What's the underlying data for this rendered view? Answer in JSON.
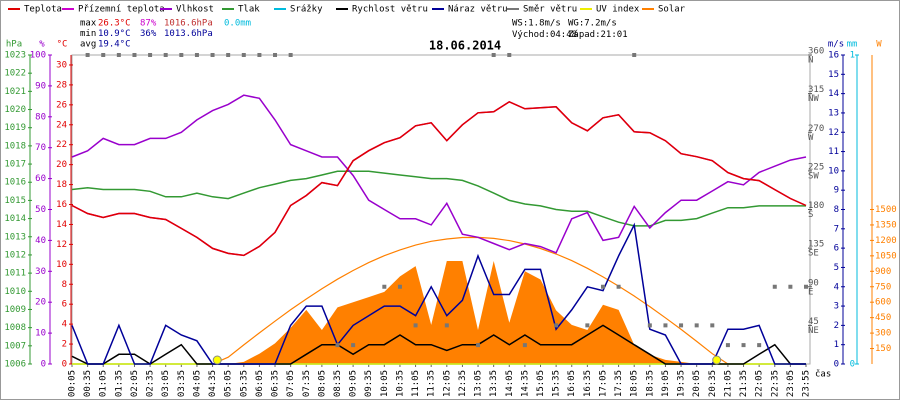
{
  "header": {
    "stats": [
      {
        "label": "max",
        "items": [
          {
            "text": "26.3°C",
            "color": "#e00000"
          },
          {
            "text": "87%",
            "color": "#cc00cc"
          },
          {
            "text": "1016.6hPa",
            "color": "#c03030"
          },
          {
            "text": "0.0mm",
            "color": "#00bbdd"
          }
        ]
      },
      {
        "label": "min",
        "items": [
          {
            "text": "10.9°C",
            "color": "#000099"
          },
          {
            "text": "36%",
            "color": "#000099"
          },
          {
            "text": "1013.6hPa",
            "color": "#000099"
          }
        ]
      },
      {
        "label": "avg",
        "items": [
          {
            "text": "19.4°C",
            "color": "#000099"
          }
        ]
      }
    ],
    "wind_speed": "WS:1.8m/s",
    "wind_gust": "WG:7.2m/s",
    "sunrise_label": "Východ:",
    "sunrise": "04:48",
    "sunset_label": "Západ:",
    "sunset": "21:01"
  },
  "chart_data": {
    "type": "line",
    "title": "18.06.2014",
    "x_label": "čas",
    "categories": [
      "00:05",
      "00:35",
      "01:05",
      "01:35",
      "02:05",
      "02:35",
      "03:05",
      "03:35",
      "04:05",
      "04:35",
      "05:05",
      "05:35",
      "06:05",
      "06:35",
      "07:05",
      "07:35",
      "08:05",
      "08:35",
      "09:05",
      "09:35",
      "10:05",
      "10:35",
      "11:05",
      "11:35",
      "12:05",
      "12:35",
      "13:05",
      "13:35",
      "14:05",
      "14:35",
      "15:05",
      "15:35",
      "16:05",
      "16:35",
      "17:05",
      "17:35",
      "18:05",
      "18:35",
      "19:05",
      "19:35",
      "20:05",
      "20:35",
      "21:05",
      "21:35",
      "22:05",
      "22:35",
      "23:05",
      "23:55"
    ],
    "axes": {
      "press": {
        "unit": "hPa",
        "color": "#339933",
        "lim": [
          1006,
          1023
        ],
        "ticks": [
          1006,
          1007,
          1008,
          1009,
          1010,
          1011,
          1012,
          1013,
          1014,
          1015,
          1016,
          1017,
          1018,
          1019,
          1020,
          1021,
          1022,
          1023
        ]
      },
      "hum": {
        "unit": "%",
        "color": "#9900cc",
        "lim": [
          0,
          100
        ],
        "ticks": [
          0,
          10,
          20,
          30,
          40,
          50,
          60,
          70,
          80,
          90,
          100
        ]
      },
      "temp": {
        "unit": "°C",
        "color": "#e00000",
        "lim": [
          0,
          31
        ],
        "ticks": [
          0,
          2,
          4,
          6,
          8,
          10,
          12,
          14,
          16,
          18,
          20,
          22,
          24,
          26,
          28,
          30
        ]
      },
      "dir": {
        "color": "#555555",
        "lim": [
          0,
          360
        ],
        "ticks": [
          45,
          90,
          135,
          180,
          225,
          270,
          315,
          360
        ],
        "tick_names": [
          "NE",
          "E",
          "SE",
          "S",
          "SW",
          "W",
          "NW",
          "N"
        ]
      },
      "wind": {
        "unit": "m/s",
        "color": "#000099",
        "lim": [
          0,
          16
        ],
        "ticks": [
          0,
          1,
          2,
          3,
          4,
          5,
          6,
          7,
          8,
          9,
          10,
          11,
          12,
          13,
          14,
          15,
          16
        ]
      },
      "rain": {
        "unit": "mm",
        "color": "#00bbdd",
        "lim": [
          0,
          1
        ],
        "ticks": [
          0,
          1
        ]
      },
      "solar": {
        "unit": "W",
        "color": "#ff8000",
        "lim": [
          0,
          3000
        ],
        "ticks": [
          150,
          300,
          450,
          600,
          750,
          900,
          1050,
          1200,
          1350,
          1500
        ]
      }
    },
    "series": [
      {
        "name": "Solar",
        "color": "#ff8000",
        "axis": "solar",
        "kind": "area",
        "values": [
          0,
          0,
          0,
          0,
          0,
          0,
          0,
          0,
          0,
          0,
          0,
          20,
          100,
          200,
          350,
          525,
          330,
          550,
          600,
          650,
          700,
          850,
          950,
          380,
          1000,
          1000,
          330,
          1000,
          400,
          900,
          820,
          520,
          380,
          330,
          575,
          525,
          185,
          90,
          40,
          20,
          0,
          0,
          0,
          0,
          0,
          0,
          0,
          0
        ]
      },
      {
        "name": "Teplota",
        "color": "#e00000",
        "axis": "temp",
        "kind": "line",
        "values": [
          15.9,
          15.1,
          14.7,
          15.1,
          15.1,
          14.7,
          14.5,
          13.6,
          12.7,
          11.6,
          11.1,
          10.9,
          11.8,
          13.2,
          15.9,
          16.9,
          18.2,
          17.9,
          20.4,
          21.4,
          22.2,
          22.7,
          23.9,
          24.2,
          22.4,
          24.0,
          25.2,
          25.3,
          26.3,
          25.6,
          25.7,
          25.8,
          24.2,
          23.4,
          24.7,
          25.0,
          23.3,
          23.2,
          22.4,
          21.1,
          20.8,
          20.4,
          19.2,
          18.6,
          18.4,
          17.5,
          16.6,
          15.9
        ]
      },
      {
        "name": "Přízemní teplota",
        "color": "#cc00cc",
        "axis": "temp",
        "kind": "line",
        "values": [
          15.9,
          15.1,
          14.7,
          15.1,
          15.1,
          14.7,
          14.5,
          13.6,
          12.7,
          11.6,
          11.1,
          10.9,
          11.8,
          13.2,
          15.9,
          16.9,
          18.2,
          17.9,
          20.4,
          21.4,
          22.2,
          22.7,
          23.9,
          24.2,
          22.4,
          24.0,
          25.2,
          25.3,
          26.3,
          25.6,
          25.7,
          25.8,
          24.2,
          23.4,
          24.7,
          25.0,
          23.3,
          23.2,
          22.4,
          21.1,
          20.8,
          20.4,
          19.2,
          18.6,
          18.4,
          17.5,
          16.6,
          15.9
        ]
      },
      {
        "name": "Vlhkost",
        "color": "#9900cc",
        "axis": "hum",
        "kind": "line",
        "values": [
          67,
          69,
          73,
          71,
          71,
          73,
          73,
          75,
          79,
          82,
          84,
          87,
          86,
          79,
          71,
          69,
          67,
          67,
          61,
          53,
          50,
          47,
          47,
          45,
          52,
          42,
          41,
          39,
          37,
          39,
          38,
          36,
          47,
          49,
          40,
          41,
          51,
          44,
          49,
          53,
          53,
          56,
          59,
          58,
          62,
          64,
          66,
          67
        ]
      },
      {
        "name": "Tlak",
        "color": "#339933",
        "axis": "press",
        "kind": "line",
        "values": [
          1015.6,
          1015.7,
          1015.6,
          1015.6,
          1015.6,
          1015.5,
          1015.2,
          1015.2,
          1015.4,
          1015.2,
          1015.1,
          1015.4,
          1015.7,
          1015.9,
          1016.1,
          1016.2,
          1016.4,
          1016.6,
          1016.6,
          1016.6,
          1016.5,
          1016.4,
          1016.3,
          1016.2,
          1016.2,
          1016.1,
          1015.8,
          1015.4,
          1015.0,
          1014.8,
          1014.7,
          1014.5,
          1014.4,
          1014.4,
          1014.1,
          1013.8,
          1013.6,
          1013.6,
          1013.9,
          1013.9,
          1014.0,
          1014.3,
          1014.6,
          1014.6,
          1014.7,
          1014.7,
          1014.7,
          1014.7
        ]
      },
      {
        "name": "Srážky",
        "color": "#00bbdd",
        "axis": "rain",
        "kind": "line",
        "values": [
          0,
          0,
          0,
          0,
          0,
          0,
          0,
          0,
          0,
          0,
          0,
          0,
          0,
          0,
          0,
          0,
          0,
          0,
          0,
          0,
          0,
          0,
          0,
          0,
          0,
          0,
          0,
          0,
          0,
          0,
          0,
          0,
          0,
          0,
          0,
          0,
          0,
          0,
          0,
          0,
          0,
          0,
          0,
          0,
          0,
          0,
          0,
          0
        ]
      },
      {
        "name": "Rychlost větru",
        "color": "#000000",
        "axis": "wind",
        "kind": "line",
        "values": [
          0.4,
          0,
          0,
          0.5,
          0.5,
          0,
          0.5,
          1,
          0,
          0,
          0,
          0,
          0,
          0,
          0,
          0.5,
          1,
          1,
          0.5,
          1,
          1,
          1.5,
          1,
          1,
          0.7,
          1,
          1,
          1.5,
          1,
          1.5,
          1,
          1,
          1,
          1.5,
          2,
          1.5,
          1,
          0.5,
          0,
          0,
          0,
          0,
          0,
          0,
          0.5,
          1,
          0,
          0
        ]
      },
      {
        "name": "Náraz větru",
        "color": "#000099",
        "axis": "wind",
        "kind": "line",
        "values": [
          2,
          0,
          0,
          2,
          0,
          0,
          2,
          1.5,
          1.2,
          0,
          0,
          0,
          0,
          0,
          2,
          3,
          3,
          1,
          2,
          2.5,
          3,
          3,
          2.5,
          4,
          2.5,
          3.3,
          5.6,
          3.6,
          3.6,
          4.9,
          4.9,
          1.8,
          2.8,
          4,
          3.8,
          5.6,
          7.2,
          1.8,
          1.5,
          0,
          0,
          0,
          1.8,
          1.8,
          2,
          0,
          0,
          0
        ]
      },
      {
        "name": "Směr větru",
        "color": "#777777",
        "axis": "dir",
        "kind": "squares",
        "values": [
          null,
          360,
          360,
          360,
          360,
          360,
          360,
          360,
          360,
          360,
          360,
          360,
          360,
          360,
          360,
          null,
          null,
          22,
          22,
          null,
          90,
          90,
          45,
          null,
          45,
          null,
          22,
          360,
          360,
          22,
          null,
          45,
          null,
          45,
          90,
          90,
          360,
          45,
          45,
          45,
          45,
          45,
          22,
          22,
          22,
          90,
          90,
          90
        ]
      },
      {
        "name": "UV index",
        "color": "#eeee00",
        "axis": "rain",
        "kind": "line",
        "values": [
          0,
          0,
          0,
          0,
          0,
          0,
          0,
          0,
          0,
          0,
          0,
          0,
          0,
          0,
          0,
          0,
          0,
          0,
          0,
          0,
          0,
          0,
          0,
          0,
          0,
          0,
          0,
          0,
          0,
          0,
          0,
          0,
          0,
          0,
          0,
          0,
          0,
          0,
          0,
          0,
          0,
          0,
          0,
          0,
          0,
          0,
          0,
          0
        ]
      }
    ],
    "solar_clear_sky": {
      "color": "#ff8000",
      "axis": "solar",
      "values": [
        null,
        null,
        null,
        null,
        null,
        null,
        null,
        null,
        null,
        0,
        66,
        185,
        302,
        416,
        526,
        631,
        730,
        823,
        908,
        984,
        1051,
        1108,
        1154,
        1191,
        1214,
        1228,
        1229,
        1219,
        1198,
        1165,
        1121,
        1068,
        1004,
        929,
        846,
        756,
        660,
        557,
        449,
        336,
        219,
        100,
        0,
        null,
        null,
        null,
        null,
        null
      ]
    }
  }
}
